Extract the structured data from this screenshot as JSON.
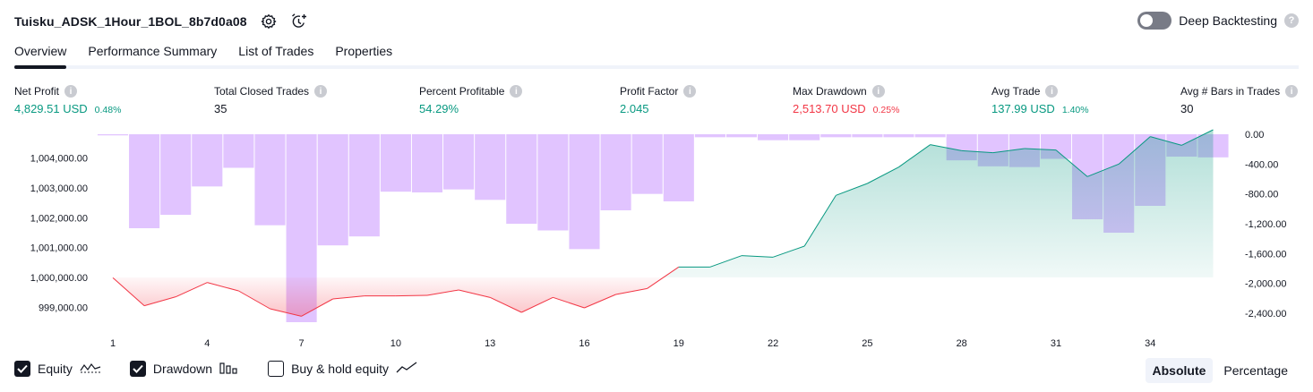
{
  "header": {
    "title": "Tuisku_ADSK_1Hour_1BOL_8b7d0a08",
    "settings_icon": "gear-icon",
    "alert_icon": "alarm-clock-plus-icon"
  },
  "deep_backtesting": {
    "label": "Deep Backtesting",
    "enabled": false,
    "help": "?"
  },
  "tabs": [
    {
      "label": "Overview",
      "active": true
    },
    {
      "label": "Performance Summary",
      "active": false
    },
    {
      "label": "List of Trades",
      "active": false
    },
    {
      "label": "Properties",
      "active": false
    }
  ],
  "stats": [
    {
      "label": "Net Profit",
      "value": "4,829.51 USD",
      "pct": "0.48%",
      "tone": "pos"
    },
    {
      "label": "Total Closed Trades",
      "value": "35",
      "pct": "",
      "tone": "neutral"
    },
    {
      "label": "Percent Profitable",
      "value": "54.29%",
      "pct": "",
      "tone": "pos"
    },
    {
      "label": "Profit Factor",
      "value": "2.045",
      "pct": "",
      "tone": "pos"
    },
    {
      "label": "Max Drawdown",
      "value": "2,513.70 USD",
      "pct": "0.25%",
      "tone": "neg"
    },
    {
      "label": "Avg Trade",
      "value": "137.99 USD",
      "pct": "1.40%",
      "tone": "pos"
    },
    {
      "label": "Avg # Bars in Trades",
      "value": "30",
      "pct": "",
      "tone": "neutral"
    }
  ],
  "info_glyph": "i",
  "chart_data": {
    "type": "line",
    "equity_axis": {
      "ticks": [
        999000,
        1000000,
        1001000,
        1002000,
        1003000,
        1004000
      ],
      "tick_labels": [
        "999,000.00",
        "1,000,000.00",
        "1,001,000.00",
        "1,002,000.00",
        "1,003,000.00",
        "1,004,000.00"
      ],
      "range": [
        998500,
        1004800
      ]
    },
    "drawdown_axis": {
      "ticks": [
        0,
        -400,
        -800,
        -1200,
        -1600,
        -2000,
        -2400
      ],
      "tick_labels": [
        "0.00",
        "-400.00",
        "-800.00",
        "-1,200.00",
        "-1,600.00",
        "-2,000.00",
        "-2,400.00"
      ],
      "range": [
        -2520,
        0
      ]
    },
    "x_ticks": [
      1,
      4,
      7,
      10,
      13,
      16,
      19,
      22,
      25,
      28,
      31,
      34
    ],
    "baseline": 1000000,
    "equity": [
      [
        1,
        999990
      ],
      [
        2,
        999050
      ],
      [
        3,
        999350
      ],
      [
        4,
        999830
      ],
      [
        5,
        999550
      ],
      [
        6,
        998950
      ],
      [
        7,
        998700
      ],
      [
        8,
        999280
      ],
      [
        9,
        999380
      ],
      [
        10,
        999380
      ],
      [
        11,
        999400
      ],
      [
        12,
        999580
      ],
      [
        13,
        999330
      ],
      [
        14,
        998830
      ],
      [
        15,
        999330
      ],
      [
        16,
        998980
      ],
      [
        17,
        999430
      ],
      [
        18,
        999630
      ],
      [
        19,
        1000350
      ],
      [
        20,
        1000350
      ],
      [
        21,
        1000730
      ],
      [
        22,
        1000680
      ],
      [
        23,
        1001050
      ],
      [
        24,
        1002750
      ],
      [
        25,
        1003150
      ],
      [
        26,
        1003700
      ],
      [
        27,
        1004450
      ],
      [
        28,
        1004250
      ],
      [
        29,
        1004180
      ],
      [
        30,
        1004320
      ],
      [
        31,
        1004270
      ],
      [
        32,
        1003380
      ],
      [
        33,
        1003800
      ],
      [
        34,
        1004720
      ],
      [
        35,
        1004430
      ],
      [
        36,
        1004950
      ]
    ],
    "drawdown": [
      -15,
      -1260,
      -1080,
      -700,
      -450,
      -1220,
      -2520,
      -1490,
      -1370,
      -770,
      -780,
      -740,
      -880,
      -1200,
      -1290,
      -1540,
      -1020,
      -800,
      -900,
      -40,
      -40,
      -80,
      -80,
      -40,
      -40,
      -40,
      -40,
      -350,
      -430,
      -440,
      -330,
      -1140,
      -1320,
      -960,
      -300,
      -310
    ],
    "series": [
      {
        "name": "Equity",
        "enabled": true
      },
      {
        "name": "Drawdown",
        "enabled": true
      },
      {
        "name": "Buy & hold equity",
        "enabled": false
      }
    ]
  },
  "legend": [
    {
      "label": "Equity",
      "checked": true,
      "icon": "equity-line-icon"
    },
    {
      "label": "Drawdown",
      "checked": true,
      "icon": "drawdown-bars-icon"
    },
    {
      "label": "Buy & hold equity",
      "checked": false,
      "icon": "buy-hold-line-icon"
    }
  ],
  "mode": [
    {
      "label": "Absolute",
      "active": true
    },
    {
      "label": "Percentage",
      "active": false
    }
  ],
  "colors": {
    "profit": "#089981",
    "loss": "#f23645",
    "drawdown_bar": "#e1c4ff",
    "text": "#131722"
  }
}
